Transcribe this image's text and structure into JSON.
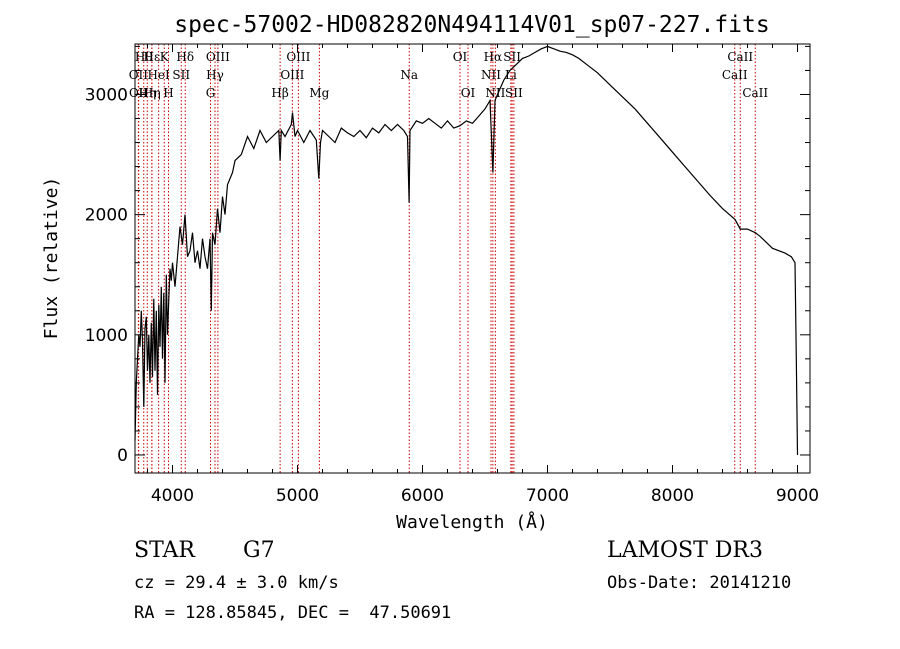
{
  "chart_data": {
    "type": "line",
    "title": "spec-57002-HD082820N494114V01_sp07-227.fits",
    "xlabel": "Wavelength (Å)",
    "ylabel": "Flux (relative)",
    "xlim": [
      3700,
      9100
    ],
    "ylim": [
      -150,
      3420
    ],
    "x_ticks": [
      4000,
      5000,
      6000,
      7000,
      8000,
      9000
    ],
    "y_ticks": [
      0,
      1000,
      2000,
      3000
    ],
    "grid": false,
    "line_color": "#000000",
    "marker_line_color": "#cc0000",
    "series": [
      {
        "x": [
          3700,
          3710,
          3720,
          3730,
          3740,
          3750,
          3760,
          3770,
          3780,
          3790,
          3800,
          3810,
          3820,
          3830,
          3840,
          3850,
          3860,
          3870,
          3880,
          3890,
          3900,
          3910,
          3920,
          3930,
          3940,
          3950,
          3960,
          3970,
          3980,
          3990,
          4000,
          4020,
          4040,
          4060,
          4080,
          4100,
          4120,
          4140,
          4160,
          4180,
          4200,
          4220,
          4240,
          4260,
          4280,
          4300,
          4310,
          4320,
          4340,
          4360,
          4380,
          4400,
          4420,
          4440,
          4460,
          4480,
          4500,
          4550,
          4600,
          4650,
          4700,
          4750,
          4800,
          4850,
          4861,
          4870,
          4900,
          4950,
          4960,
          4980,
          5000,
          5050,
          5100,
          5150,
          5170,
          5184,
          5200,
          5250,
          5300,
          5350,
          5400,
          5450,
          5500,
          5550,
          5600,
          5650,
          5700,
          5750,
          5800,
          5850,
          5880,
          5893,
          5900,
          5950,
          6000,
          6050,
          6100,
          6150,
          6200,
          6250,
          6300,
          6350,
          6400,
          6450,
          6500,
          6540,
          6563,
          6580,
          6600,
          6650,
          6700,
          6750,
          6800,
          6850,
          6900,
          6950,
          7000,
          7050,
          7100,
          7150,
          7200,
          7250,
          7300,
          7400,
          7500,
          7600,
          7700,
          7800,
          7900,
          8000,
          8100,
          8200,
          8300,
          8400,
          8500,
          8542,
          8600,
          8662,
          8700,
          8800,
          8900,
          8950,
          8980,
          8990,
          9000
        ],
        "y": [
          120,
          600,
          800,
          1000,
          900,
          1200,
          950,
          400,
          1050,
          1150,
          700,
          1000,
          600,
          1100,
          650,
          1300,
          700,
          1200,
          500,
          1250,
          900,
          1400,
          800,
          1350,
          600,
          1500,
          1000,
          1300,
          1550,
          1450,
          1600,
          1400,
          1650,
          1900,
          1750,
          2000,
          1650,
          1700,
          1850,
          1600,
          1700,
          1550,
          1800,
          1650,
          1550,
          1800,
          1200,
          1850,
          1750,
          2050,
          1850,
          2150,
          2000,
          2250,
          2300,
          2350,
          2450,
          2500,
          2650,
          2550,
          2700,
          2600,
          2650,
          2700,
          2450,
          2700,
          2650,
          2750,
          2850,
          2650,
          2700,
          2600,
          2700,
          2620,
          2300,
          2600,
          2700,
          2650,
          2600,
          2720,
          2680,
          2650,
          2700,
          2640,
          2720,
          2680,
          2750,
          2700,
          2750,
          2700,
          2650,
          2100,
          2700,
          2780,
          2760,
          2800,
          2760,
          2720,
          2780,
          2720,
          2740,
          2780,
          2760,
          2820,
          2880,
          2950,
          2350,
          2950,
          3000,
          3120,
          3200,
          3250,
          3300,
          3320,
          3350,
          3380,
          3400,
          3380,
          3360,
          3350,
          3330,
          3300,
          3260,
          3180,
          3080,
          2980,
          2880,
          2760,
          2640,
          2520,
          2400,
          2280,
          2160,
          2050,
          1960,
          1880,
          1880,
          1850,
          1820,
          1720,
          1680,
          1650,
          1600,
          800,
          0
        ]
      }
    ],
    "line_markers": [
      {
        "wl": 3727,
        "label": "OII",
        "row": 1
      },
      {
        "wl": 3729,
        "label": "OII",
        "row": 2
      },
      {
        "wl": 3770,
        "label": "Hθ",
        "row": 0
      },
      {
        "wl": 3798,
        "label": "Hη",
        "row": 2
      },
      {
        "wl": 3835,
        "label": "Hη",
        "row": 2
      },
      {
        "wl": 3835,
        "label": "Hε",
        "row": 0
      },
      {
        "wl": 3889,
        "label": "HeI",
        "row": 1
      },
      {
        "wl": 3934,
        "label": "K",
        "row": 0
      },
      {
        "wl": 3968,
        "label": "H",
        "row": 2
      },
      {
        "wl": 4070,
        "label": "SII",
        "row": 1
      },
      {
        "wl": 4102,
        "label": "Hδ",
        "row": 0
      },
      {
        "wl": 4304,
        "label": "G",
        "row": 2
      },
      {
        "wl": 4340,
        "label": "Hγ",
        "row": 1
      },
      {
        "wl": 4363,
        "label": "OIII",
        "row": 0
      },
      {
        "wl": 4861,
        "label": "Hβ",
        "row": 2
      },
      {
        "wl": 4959,
        "label": "OIII",
        "row": 1
      },
      {
        "wl": 5007,
        "label": "OIII",
        "row": 0
      },
      {
        "wl": 5175,
        "label": "Mg",
        "row": 2
      },
      {
        "wl": 5894,
        "label": "Na",
        "row": 1
      },
      {
        "wl": 6300,
        "label": "OI",
        "row": 0
      },
      {
        "wl": 6364,
        "label": "OI",
        "row": 2
      },
      {
        "wl": 6548,
        "label": "NII",
        "row": 1
      },
      {
        "wl": 6563,
        "label": "Hα",
        "row": 0
      },
      {
        "wl": 6583,
        "label": "NII",
        "row": 2
      },
      {
        "wl": 6707,
        "label": "Li",
        "row": 1
      },
      {
        "wl": 6717,
        "label": "SII",
        "row": 0
      },
      {
        "wl": 6731,
        "label": "SII",
        "row": 2
      },
      {
        "wl": 8498,
        "label": "CaII",
        "row": 1
      },
      {
        "wl": 8542,
        "label": "CaII",
        "row": 0
      },
      {
        "wl": 8662,
        "label": "CaII",
        "row": 2
      }
    ]
  },
  "info": {
    "object_class": "STAR",
    "subclass": "G7",
    "survey": "LAMOST DR3",
    "cz": "cz = 29.4 ± 3.0 km/s",
    "obs_date": "Obs-Date: 20141210",
    "radec": "RA = 128.85845, DEC =  47.50691"
  }
}
